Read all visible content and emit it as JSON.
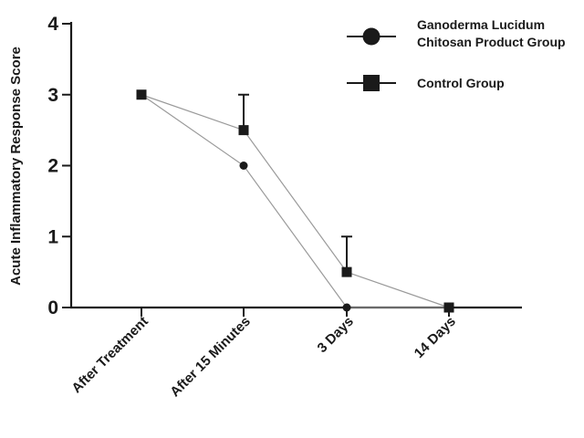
{
  "chart_data": {
    "type": "line",
    "title": "",
    "xlabel": "",
    "ylabel": "Acute Inflammatory Response Score",
    "categories": [
      "After Treatment",
      "After 15 Minutes",
      "3 Days",
      "14 Days"
    ],
    "yticks": [
      0,
      1,
      2,
      3,
      4
    ],
    "ylim": [
      0,
      4
    ],
    "grid": false,
    "legend_position": "top-right",
    "series": [
      {
        "name": "Ganoderma Lucidum Chitosan Product Group",
        "name_lines": [
          "Ganoderma Lucidum",
          "Chitosan Product Group"
        ],
        "marker": "circle",
        "values": [
          3,
          2,
          0,
          0
        ],
        "error": [
          0,
          0,
          0,
          0
        ]
      },
      {
        "name": "Control Group",
        "name_lines": [
          "Control Group"
        ],
        "marker": "square",
        "values": [
          3,
          2.5,
          0.5,
          0
        ],
        "error": [
          0,
          0.5,
          0.5,
          0
        ]
      }
    ]
  }
}
